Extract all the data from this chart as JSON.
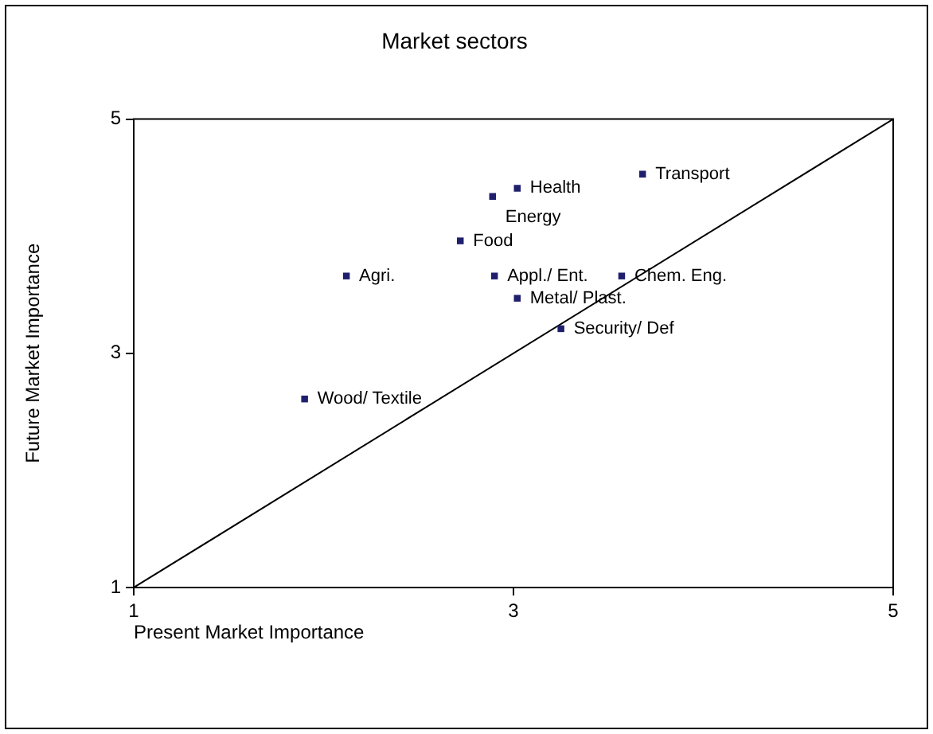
{
  "chart_data": {
    "type": "scatter",
    "title": "Market sectors",
    "xlabel": "Present Market Importance",
    "ylabel": "Future Market Importance",
    "series": [
      {
        "color": "#1f1f6e",
        "marker": "square",
        "x": [
          1.9,
          2.12,
          2.72,
          2.89,
          3.02,
          3.68,
          2.9,
          3.57,
          3.02,
          3.25
        ],
        "values": [
          2.61,
          3.66,
          3.96,
          4.34,
          4.41,
          4.53,
          3.66,
          3.66,
          3.47,
          3.21
        ]
      },
      {
        "type": "line",
        "marker": "none",
        "color": "#000000",
        "x": [
          1,
          5
        ],
        "values": [
          1,
          5
        ]
      }
    ],
    "annotations": [
      {
        "text": "Wood/ Textile",
        "x": 1.9,
        "y": 2.61
      },
      {
        "text": "Agri.",
        "x": 2.12,
        "y": 3.66
      },
      {
        "text": "Food",
        "x": 2.72,
        "y": 3.96
      },
      {
        "text": "Health",
        "x": 3.02,
        "y": 4.41
      },
      {
        "text": "Energy",
        "x": 2.89,
        "y": 4.34
      },
      {
        "text": "Transport",
        "x": 3.68,
        "y": 4.53
      },
      {
        "text": "Appl./ Ent.",
        "x": 2.9,
        "y": 3.66
      },
      {
        "text": "Chem. Eng.",
        "x": 3.57,
        "y": 3.66
      },
      {
        "text": "Metal/ Plast.",
        "x": 3.02,
        "y": 3.47
      },
      {
        "text": "Security/ Def",
        "x": 3.25,
        "y": 3.21
      }
    ],
    "xlim": [
      1,
      5
    ],
    "ylim": [
      1,
      5
    ],
    "xticks": [
      1,
      3,
      5
    ],
    "yticks": [
      1,
      3,
      5
    ],
    "grid": false,
    "legend": false
  }
}
